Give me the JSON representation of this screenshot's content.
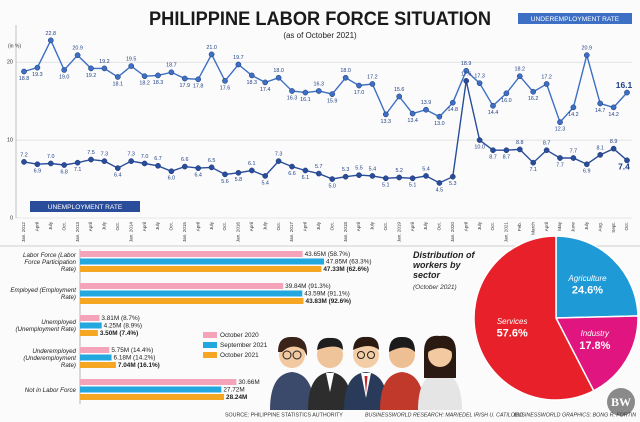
{
  "title": "PHILIPPINE LABOR FORCE SITUATION",
  "subtitle": "(as of October 2021)",
  "chart_data": [
    {
      "type": "line",
      "y_label": "(in %)",
      "categories": [
        "Jan. 2012",
        "April",
        "July",
        "Oct.",
        "Jan. 2013",
        "April",
        "July",
        "Oct.",
        "Jan. 2014",
        "April",
        "July",
        "Oct.",
        "Jan. 2015",
        "April",
        "July",
        "Oct.",
        "Jan. 2016",
        "April",
        "July",
        "Oct.",
        "Jan. 2017",
        "April",
        "July",
        "Oct.",
        "Jan. 2018",
        "April",
        "July",
        "Oct.",
        "Jan. 2019",
        "April",
        "July",
        "Oct.",
        "Jan. 2020",
        "April",
        "July",
        "Oct.",
        "Jan. 2021",
        "Feb.",
        "March",
        "April",
        "May",
        "June",
        "July",
        "Aug.",
        "Sept.",
        "Oct."
      ],
      "series": [
        {
          "name": "UNDEREMPLOYMENT RATE",
          "color": "#3d6fc4",
          "values": [
            18.8,
            19.3,
            22.8,
            19.0,
            20.9,
            19.2,
            19.2,
            18.1,
            19.5,
            18.2,
            18.3,
            18.7,
            17.9,
            17.8,
            21.0,
            17.6,
            19.7,
            18.3,
            17.4,
            18.0,
            16.3,
            16.1,
            16.3,
            15.9,
            18.0,
            17.0,
            17.2,
            13.3,
            15.6,
            13.4,
            13.9,
            13.0,
            14.8,
            18.9,
            17.3,
            14.4,
            16.0,
            18.2,
            16.2,
            17.2,
            12.3,
            14.2,
            20.9,
            14.7,
            14.2,
            16.1
          ],
          "value_labels": [
            "18.8",
            "19.3",
            "22.8",
            "19.0",
            "20.9",
            "19.2",
            "19.2",
            "18.1",
            "19.5",
            "18.2",
            "18.3",
            "18.7",
            "17.9",
            "17.8",
            "21.0",
            "17.6",
            "19.7",
            "18.3",
            "17.4",
            "18.0",
            "16.3",
            "16.1",
            "16.3",
            "15.9",
            "18.0",
            "17.0",
            "17.2",
            "13.3",
            "15.6",
            "13.4",
            "13.9",
            "13.0",
            "14.8",
            "18.9",
            "17.3",
            "14.4",
            "16.0",
            "18.2",
            "16.2",
            "17.2",
            "12.3",
            "14.2",
            "20.9",
            "14.7",
            "14.2",
            "16.1"
          ]
        },
        {
          "name": "UNEMPLOYMENT RATE",
          "color": "#2a4d9b",
          "values": [
            7.2,
            6.9,
            7.0,
            6.8,
            7.1,
            7.5,
            7.3,
            6.4,
            7.3,
            7.0,
            6.7,
            6.0,
            6.6,
            6.4,
            6.5,
            5.6,
            5.8,
            6.1,
            5.4,
            7.3,
            6.6,
            6.1,
            5.7,
            5.0,
            5.3,
            5.5,
            5.4,
            5.1,
            5.2,
            5.1,
            5.4,
            4.5,
            5.3,
            17.6,
            10.0,
            8.7,
            8.7,
            8.8,
            7.1,
            8.7,
            7.7,
            7.7,
            6.9,
            8.1,
            8.9,
            7.4
          ],
          "value_labels": [
            "7.2",
            "6.9",
            "7.0",
            "6.8",
            "7.1",
            "7.5",
            "7.3",
            "6.4",
            "7.3",
            "7.0",
            "6.7",
            "6.0",
            "6.6",
            "6.4",
            "6.5",
            "5.6",
            "5.8",
            "6.1",
            "5.4",
            "7.3",
            "6.6",
            "6.1",
            "5.7",
            "5.0",
            "5.3",
            "5.5",
            "5.4",
            "5.1",
            "5.2",
            "5.1",
            "5.4",
            "4.5",
            "5.3",
            "17.6",
            "10.0",
            "8.7",
            "8.7",
            "8.8",
            "7.1",
            "8.7",
            "7.7",
            "7.7",
            "6.9",
            "8.1",
            "8.9",
            "7.4"
          ]
        }
      ],
      "ylim": [
        0,
        24
      ],
      "yticks": [
        0,
        10,
        20
      ],
      "grid": true
    },
    {
      "type": "bar",
      "orientation": "horizontal",
      "categories": [
        "Labor Force (Labor Force Participation Rate)",
        "Employed (Employment Rate)",
        "Unemployed (Unemployment Rate)",
        "Underemployed (Underemployment Rate)",
        "Not in Labor Force"
      ],
      "series": [
        {
          "name": "October 2020",
          "color": "#f4a3b8",
          "values": [
            43.65,
            39.84,
            3.81,
            5.75,
            30.66
          ],
          "value_labels": [
            "43.65M (58.7%)",
            "39.84M (91.3%)",
            "3.81M (8.7%)",
            "5.75M (14.4%)",
            "30.66M"
          ]
        },
        {
          "name": "September 2021",
          "color": "#22a7df",
          "values": [
            47.85,
            43.59,
            4.25,
            6.18,
            27.72
          ],
          "value_labels": [
            "47.85M (63.3%)",
            "43.59M (91.1%)",
            "4.25M (8.9%)",
            "6.18M (14.2%)",
            "27.72M"
          ]
        },
        {
          "name": "October 2021",
          "color": "#f5a623",
          "values": [
            47.33,
            43.83,
            3.5,
            7.04,
            28.24
          ],
          "value_labels": [
            "47.33M (62.6%)",
            "43.83M (92.6%)",
            "3.50M (7.4%)",
            "7.04M (16.1%)",
            "28.24M"
          ]
        }
      ]
    },
    {
      "type": "pie",
      "title": "Distribution of workers by sector",
      "subtitle": "(October 2021)",
      "categories": [
        "Agriculture",
        "Industry",
        "Services"
      ],
      "values": [
        24.6,
        17.8,
        57.6
      ],
      "value_labels": [
        "24.6%",
        "17.8%",
        "57.6%"
      ],
      "colors": [
        "#1e9ad6",
        "#e0157f",
        "#e8202a"
      ]
    }
  ],
  "footer": {
    "source": "SOURCE: PHILIPPINE STATISTICS AUTHORITY",
    "research": "BUSINESSWORLD RESEARCH: MARIEDEL IRISH U. CATILOGO",
    "graphics": "BUSINESSWORLD GRAPHICS: BONG R. FORTIN"
  },
  "logo": "BW"
}
